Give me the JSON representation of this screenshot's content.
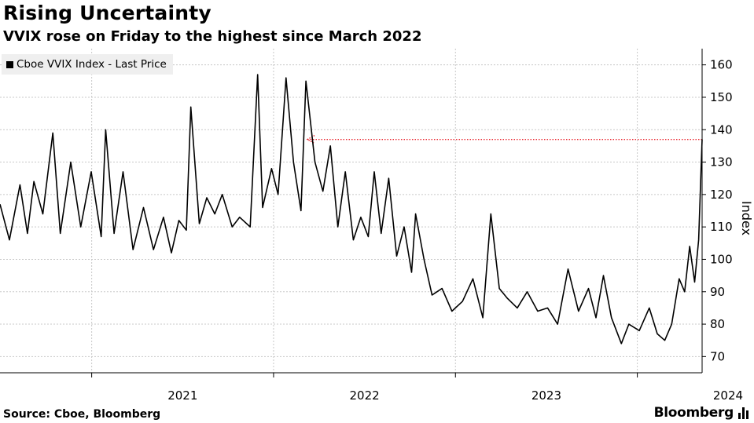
{
  "chart_data": {
    "type": "line",
    "title": "Rising Uncertainty",
    "subtitle": "VVIX rose on Friday to the highest since March 2022",
    "ylabel": "Index",
    "ylim": [
      65,
      165
    ],
    "yticks": [
      70,
      80,
      90,
      100,
      110,
      120,
      130,
      140,
      150,
      160
    ],
    "xlim": [
      "2020-07-01",
      "2024-05-10"
    ],
    "xticks": [
      {
        "label": "2021",
        "date": "2021-01-01"
      },
      {
        "label": "2022",
        "date": "2022-01-01"
      },
      {
        "label": "2023",
        "date": "2023-01-01"
      },
      {
        "label": "2024",
        "date": "2024-01-01"
      }
    ],
    "grid": true,
    "legend_position": "top-left",
    "series": [
      {
        "name": "Cboe VVIX Index - Last Price",
        "color": "#000000",
        "points": [
          [
            "2020-07-01",
            117
          ],
          [
            "2020-07-20",
            106
          ],
          [
            "2020-08-10",
            123
          ],
          [
            "2020-08-25",
            108
          ],
          [
            "2020-09-07",
            124
          ],
          [
            "2020-09-25",
            114
          ],
          [
            "2020-10-15",
            139
          ],
          [
            "2020-10-30",
            108
          ],
          [
            "2020-11-20",
            130
          ],
          [
            "2020-12-10",
            110
          ],
          [
            "2020-12-31",
            127
          ],
          [
            "2021-01-20",
            107
          ],
          [
            "2021-01-29",
            140
          ],
          [
            "2021-02-15",
            108
          ],
          [
            "2021-03-05",
            127
          ],
          [
            "2021-03-25",
            103
          ],
          [
            "2021-04-15",
            116
          ],
          [
            "2021-05-05",
            103
          ],
          [
            "2021-05-25",
            113
          ],
          [
            "2021-06-10",
            102
          ],
          [
            "2021-06-25",
            112
          ],
          [
            "2021-07-10",
            109
          ],
          [
            "2021-07-19",
            147
          ],
          [
            "2021-08-05",
            111
          ],
          [
            "2021-08-20",
            119
          ],
          [
            "2021-09-05",
            114
          ],
          [
            "2021-09-20",
            120
          ],
          [
            "2021-10-10",
            110
          ],
          [
            "2021-10-25",
            113
          ],
          [
            "2021-11-15",
            110
          ],
          [
            "2021-11-30",
            157
          ],
          [
            "2021-12-10",
            116
          ],
          [
            "2021-12-28",
            128
          ],
          [
            "2022-01-10",
            120
          ],
          [
            "2022-01-26",
            156
          ],
          [
            "2022-02-10",
            130
          ],
          [
            "2022-02-25",
            115
          ],
          [
            "2022-03-07",
            155
          ],
          [
            "2022-03-25",
            130
          ],
          [
            "2022-04-10",
            121
          ],
          [
            "2022-04-25",
            135
          ],
          [
            "2022-05-10",
            110
          ],
          [
            "2022-05-25",
            127
          ],
          [
            "2022-06-10",
            106
          ],
          [
            "2022-06-25",
            113
          ],
          [
            "2022-07-10",
            107
          ],
          [
            "2022-07-22",
            127
          ],
          [
            "2022-08-05",
            108
          ],
          [
            "2022-08-20",
            125
          ],
          [
            "2022-09-05",
            101
          ],
          [
            "2022-09-20",
            110
          ],
          [
            "2022-10-05",
            96
          ],
          [
            "2022-10-13",
            114
          ],
          [
            "2022-10-30",
            100
          ],
          [
            "2022-11-15",
            89
          ],
          [
            "2022-12-05",
            91
          ],
          [
            "2022-12-25",
            84
          ],
          [
            "2023-01-15",
            87
          ],
          [
            "2023-02-05",
            94
          ],
          [
            "2023-02-25",
            82
          ],
          [
            "2023-03-13",
            114
          ],
          [
            "2023-03-30",
            91
          ],
          [
            "2023-04-15",
            88
          ],
          [
            "2023-05-05",
            85
          ],
          [
            "2023-05-25",
            90
          ],
          [
            "2023-06-15",
            84
          ],
          [
            "2023-07-05",
            85
          ],
          [
            "2023-07-25",
            80
          ],
          [
            "2023-08-15",
            97
          ],
          [
            "2023-09-05",
            84
          ],
          [
            "2023-09-25",
            91
          ],
          [
            "2023-10-10",
            82
          ],
          [
            "2023-10-25",
            95
          ],
          [
            "2023-11-10",
            82
          ],
          [
            "2023-11-30",
            74
          ],
          [
            "2023-12-15",
            80
          ],
          [
            "2024-01-05",
            78
          ],
          [
            "2024-01-25",
            85
          ],
          [
            "2024-02-10",
            77
          ],
          [
            "2024-02-25",
            75
          ],
          [
            "2024-03-10",
            80
          ],
          [
            "2024-03-25",
            94
          ],
          [
            "2024-04-05",
            90
          ],
          [
            "2024-04-15",
            104
          ],
          [
            "2024-04-25",
            93
          ],
          [
            "2024-05-03",
            106
          ],
          [
            "2024-05-10",
            137
          ]
        ]
      }
    ],
    "annotations": [
      {
        "type": "dotted-arrow",
        "color": "#e8202a",
        "value": 137,
        "from": "2024-05-10",
        "to": "2022-03-10"
      }
    ]
  },
  "footer": {
    "source": "Source: Cboe, Bloomberg",
    "logo": "Bloomberg"
  }
}
